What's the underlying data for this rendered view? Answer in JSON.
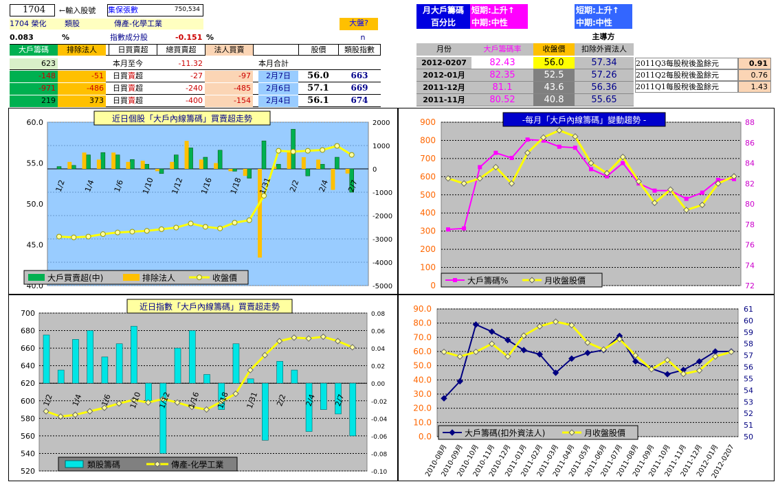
{
  "header": {
    "code": "1704",
    "input_hint": "←輸入股號",
    "holders_label": "集保張數",
    "holders_value": "750,534",
    "name_line": "1704 榮化",
    "category_label": "類股",
    "industry": "傳產-化學工業",
    "market_button": "大盤?",
    "pct_value": "0.083",
    "pct_sign": "%",
    "index_label": "指數成分股",
    "index_value": "-0.151",
    "index_pct": "%",
    "n_label": "n"
  },
  "left_table": {
    "headers": [
      "大戶籌碼",
      "排除法人",
      "日買賣超",
      "總買賣超",
      "法人買賣",
      "",
      "股價",
      "類股指數"
    ],
    "summary": {
      "a": "623",
      "b": "",
      "c": "本月至今",
      "d": "-11.32",
      "e": "",
      "f": "本月合計"
    },
    "rows": [
      {
        "a": "-148",
        "b": "-51",
        "c1": "日買",
        "c2": "賣",
        "c3": "超",
        "d": "-27",
        "e": "-97",
        "date": "2月7日",
        "price": "56.0",
        "idx": "663"
      },
      {
        "a": "-971",
        "b": "-486",
        "c1": "日買",
        "c2": "賣",
        "c3": "超",
        "d": "-240",
        "e": "-485",
        "date": "2月6日",
        "price": "57.1",
        "idx": "669"
      },
      {
        "a": "219",
        "b": "373",
        "c1": "日買",
        "c2": "賣",
        "c3": "超",
        "d": "-400",
        "e": "-154",
        "date": "2月4日",
        "price": "56.1",
        "idx": "674"
      }
    ]
  },
  "badges": {
    "monthly1": "月大戶籌碼",
    "monthly2": "百分比",
    "short_term": "短期:上升↑",
    "mid_term": "中期:中性",
    "short_term2": "短期:上升↑",
    "mid_term2": "中期:中性",
    "main_force": "主導方"
  },
  "right_table": {
    "headers": [
      "月份",
      "大戶籌碼率",
      "收盤價",
      "扣除外資法人"
    ],
    "rows": [
      [
        "2012-0207",
        "82.43",
        "56.0",
        "57.34"
      ],
      [
        "2012-01月",
        "82.35",
        "52.5",
        "57.26"
      ],
      [
        "2011-12月",
        "81.1",
        "43.6",
        "56.36"
      ],
      [
        "2011-11月",
        "80.52",
        "40.8",
        "55.65"
      ]
    ]
  },
  "eps_table": {
    "rows": [
      [
        "2011Q3每股稅後盈餘元",
        "0.91"
      ],
      [
        "2011Q2每股稅後盈餘元",
        "0.76"
      ],
      [
        "2011Q1每股稅後盈餘元",
        "1.43"
      ]
    ]
  },
  "colors": {
    "green": "#00b050",
    "orange": "#ffc000",
    "yellow": "#ffff00",
    "magenta": "#ff00ff",
    "navy": "#000080",
    "cyan": "#00e5e5",
    "blue_bg": "#99ccff",
    "gray_bg": "#c0c0c0"
  },
  "chart_data": [
    {
      "type": "bar",
      "title": "近日個股「大戶內線籌碼」買賣超走勢",
      "categories": [
        "1/2",
        "",
        "1/4",
        "",
        "1/6",
        "",
        "1/10",
        "",
        "1/12",
        "",
        "1/16",
        "",
        "1/18",
        "",
        "1/31",
        "",
        "2/2",
        "",
        "2/4",
        "",
        "2/7"
      ],
      "x_labels_shown": [
        "1/2",
        "1/4",
        "1/6",
        "1/10",
        "1/12",
        "1/16",
        "1/18",
        "1/31",
        "2/2",
        "2/4",
        "2/7"
      ],
      "series": [
        {
          "name": "大戶買賣超(中)",
          "axis": "right",
          "values": [
            100,
            150,
            600,
            700,
            600,
            400,
            200,
            -200,
            600,
            900,
            500,
            800,
            -100,
            -400,
            1200,
            200,
            1700,
            -300,
            200,
            500,
            -1000
          ]
        },
        {
          "name": "排除法人",
          "axis": "right",
          "values": [
            0,
            300,
            700,
            400,
            700,
            300,
            350,
            -100,
            300,
            1200,
            400,
            250,
            -100,
            -300,
            -3800,
            100,
            800,
            500,
            400,
            -900,
            -200
          ]
        },
        {
          "name": "收盤價",
          "axis": "left",
          "type": "line",
          "values": [
            46.0,
            45.9,
            46.0,
            46.3,
            46.5,
            46.6,
            46.7,
            46.9,
            47.1,
            47.6,
            47.2,
            47.0,
            47.7,
            48.0,
            51.0,
            56.5,
            56.4,
            56.5,
            56.6,
            57.1,
            56.0
          ]
        }
      ],
      "ylim_left": [
        40,
        60
      ],
      "yticks_left": [
        "40.0",
        "45.0",
        "50.0",
        "55.0",
        "60.0"
      ],
      "ylim_right": [
        -5000,
        2000
      ],
      "yticks_right": [
        "-5000",
        "-4000",
        "-3000",
        "-2000",
        "-1000",
        "0",
        "1000",
        "2000"
      ]
    },
    {
      "type": "line",
      "title": "-每月「大戶內線籌碼」變動趨勢 -",
      "series": [
        {
          "name": "大戶籌碼%",
          "axis": "left",
          "values": [
            77.5,
            77.6,
            83.6,
            85.0,
            84.5,
            86.3,
            86.2,
            85.6,
            85.5,
            83.4,
            82.7,
            84.0,
            82.0,
            81.3,
            81.3,
            80.5,
            81.1,
            82.35,
            82.43
          ]
        },
        {
          "name": "月收盤股價",
          "axis": "right",
          "values": [
            82.5,
            82.0,
            82.5,
            83.6,
            82.0,
            85.0,
            86.5,
            87.2,
            86.6,
            84.0,
            83.0,
            84.6,
            82.2,
            80.1,
            81.4,
            79.4,
            79.9,
            82.0,
            82.7
          ]
        }
      ],
      "ylim_left": [
        0,
        900
      ],
      "yticks_left": [
        "0",
        "100",
        "200",
        "300",
        "400",
        "500",
        "600",
        "700",
        "800",
        "900"
      ],
      "ylim_right": [
        72,
        88
      ],
      "yticks_right": [
        "72",
        "74",
        "76",
        "78",
        "80",
        "82",
        "84",
        "86",
        "88"
      ]
    },
    {
      "type": "bar",
      "title": "近日指數「大戶內線籌碼」買賣超走勢",
      "x_labels_shown": [
        "1/2",
        "1/4",
        "1/6",
        "1/10",
        "1/12",
        "1/16",
        "1/18",
        "1/31",
        "2/2",
        "2/4",
        "2/7"
      ],
      "series": [
        {
          "name": "類股籌碼",
          "axis": "right",
          "values": [
            0.055,
            0.015,
            0.05,
            0.06,
            0.03,
            0.045,
            0.065,
            -0.02,
            -0.08,
            0.04,
            0.06,
            0.01,
            -0.03,
            0.045,
            0.005,
            -0.065,
            0.025,
            0.015,
            -0.055,
            -0.03,
            -0.035,
            -0.06
          ]
        },
        {
          "name": "傳產-化學工業",
          "axis": "left",
          "type": "line",
          "values": [
            588,
            582,
            584,
            588,
            592,
            597,
            601,
            598,
            602,
            598,
            593,
            590,
            599,
            608,
            635,
            652,
            668,
            672,
            671,
            673,
            668,
            661
          ]
        }
      ],
      "ylim_left": [
        520,
        700
      ],
      "yticks_left": [
        "520",
        "540",
        "560",
        "580",
        "600",
        "620",
        "640",
        "660",
        "680",
        "700"
      ],
      "ylim_right": [
        -0.1,
        0.08
      ],
      "yticks_right": [
        "-0.10",
        "-0.08",
        "-0.06",
        "-0.04",
        "-0.02",
        "0.00",
        "0.02",
        "0.04",
        "0.06",
        "0.08"
      ]
    },
    {
      "type": "line",
      "categories": [
        "2010-08月",
        "2010-09月",
        "2010-10月",
        "2010-11月",
        "2010-12月",
        "2011-01月",
        "2011-02月",
        "2011-03月",
        "2011-04月",
        "2011-05月",
        "2011-06月",
        "2011-07月",
        "2011-08月",
        "2011-09月",
        "2011-10月",
        "2011-11月",
        "2011-12月",
        "2012-01月",
        "2012-0207"
      ],
      "series": [
        {
          "name": "大戶籌碼(扣外資法人)",
          "axis": "left",
          "values": [
            27,
            39,
            79,
            74,
            68,
            61,
            58,
            45,
            55,
            59,
            61,
            71,
            53,
            48,
            44,
            47,
            53,
            60,
            60
          ]
        },
        {
          "name": "月收盤股價",
          "axis": "right",
          "values": [
            57.3,
            56.9,
            57.3,
            58.0,
            56.9,
            58.7,
            59.5,
            59.9,
            59.6,
            58.1,
            57.5,
            58.4,
            57.0,
            55.8,
            56.6,
            55.4,
            55.7,
            56.9,
            57.3
          ]
        }
      ],
      "ylim_left": [
        0,
        90
      ],
      "yticks_left": [
        "0.0",
        "10.0",
        "20.0",
        "30.0",
        "40.0",
        "50.0",
        "60.0",
        "70.0",
        "80.0",
        "90.0"
      ],
      "ylim_right": [
        50,
        61
      ],
      "yticks_right": [
        "50",
        "51",
        "52",
        "53",
        "54",
        "55",
        "56",
        "57",
        "58",
        "59",
        "60",
        "61"
      ]
    }
  ]
}
